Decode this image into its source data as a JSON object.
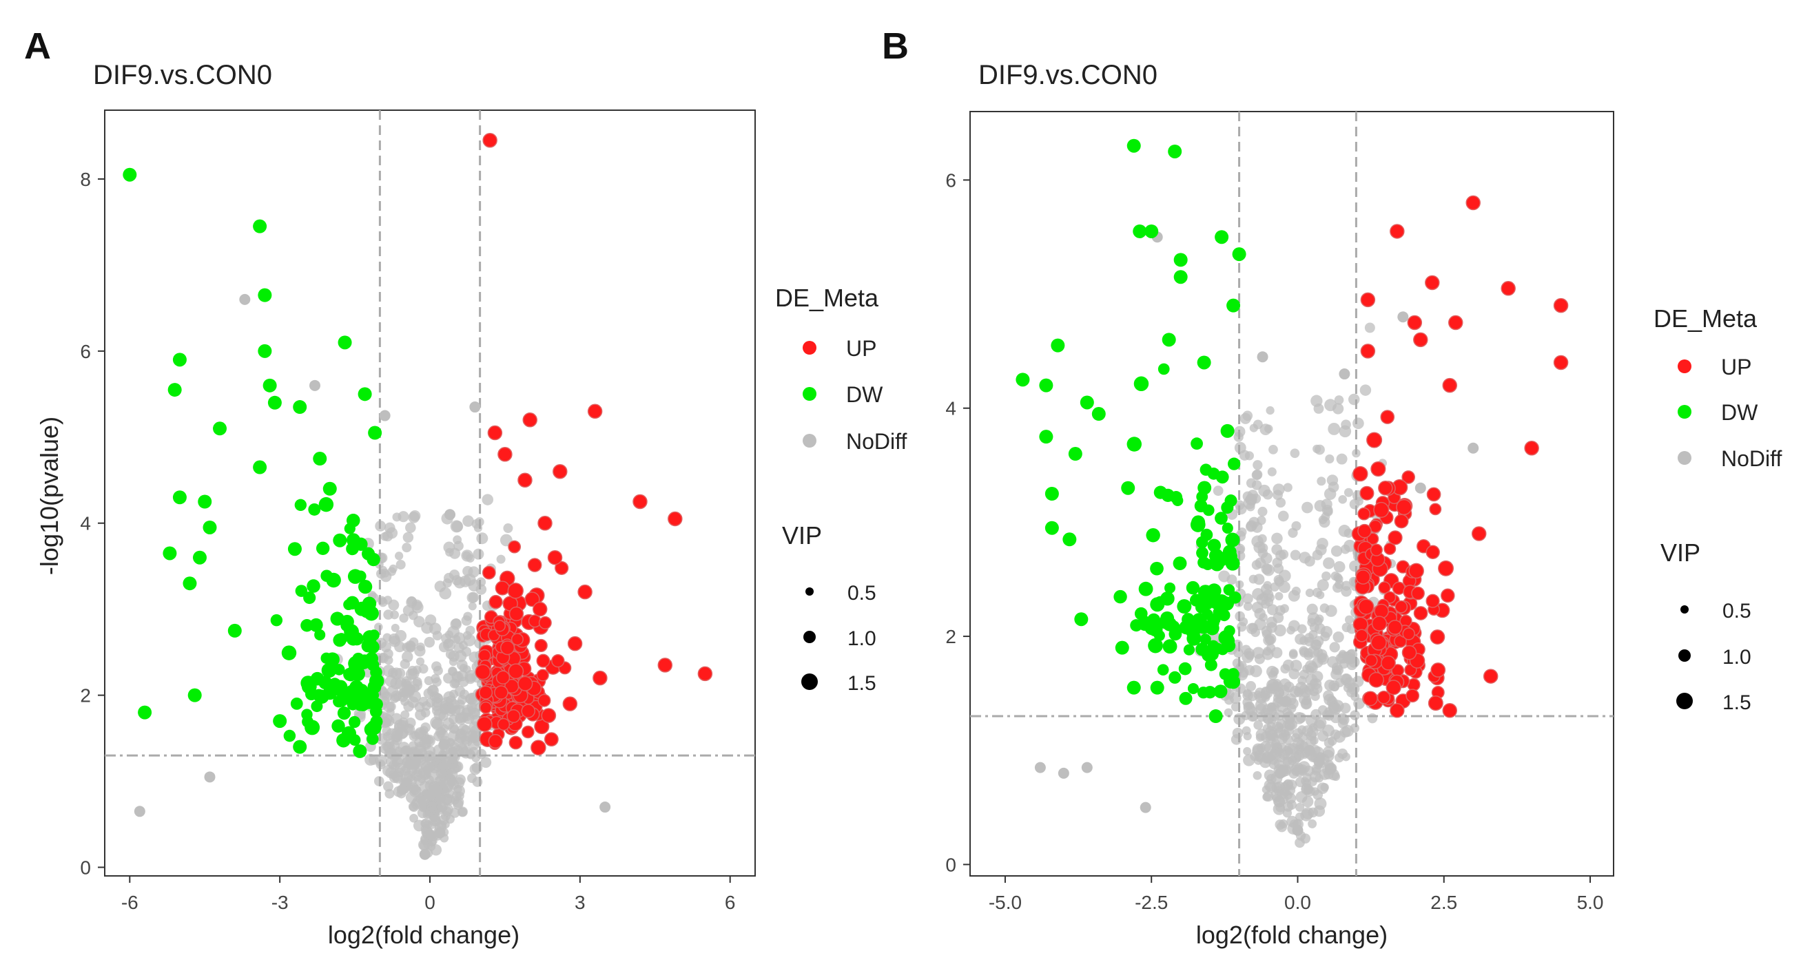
{
  "panels": [
    {
      "letter": "A",
      "title": "DIF9.vs.CON0",
      "xlabel": "log2(fold change)",
      "ylabel": "-log10(pvalue)",
      "xticks": [
        "-6",
        "-3",
        "0",
        "3",
        "6"
      ],
      "yticks": [
        "0",
        "2",
        "4",
        "6",
        "8"
      ],
      "legend": {
        "color_title": "DE_Meta",
        "color_items": [
          {
            "label": "UP",
            "color": "#ff1a1a"
          },
          {
            "label": "DW",
            "color": "#00ee00"
          },
          {
            "label": "NoDiff",
            "color": "#bebebe"
          }
        ],
        "size_title": "VIP",
        "size_items": [
          "0.5",
          "1.0",
          "1.5"
        ]
      }
    },
    {
      "letter": "B",
      "title": "DIF9.vs.CON0",
      "xlabel": "log2(fold change)",
      "ylabel": "",
      "xticks": [
        "-5.0",
        "-2.5",
        "0.0",
        "2.5",
        "5.0"
      ],
      "yticks": [
        "0",
        "2",
        "4",
        "6"
      ],
      "legend": {
        "color_title": "DE_Meta",
        "color_items": [
          {
            "label": "UP",
            "color": "#ff1a1a"
          },
          {
            "label": "DW",
            "color": "#00ee00"
          },
          {
            "label": "NoDiff",
            "color": "#bebebe"
          }
        ],
        "size_title": "VIP",
        "size_items": [
          "0.5",
          "1.0",
          "1.5"
        ]
      }
    }
  ],
  "chart_data": [
    {
      "type": "scatter",
      "title": "DIF9.vs.CON0",
      "xlabel": "log2(fold change)",
      "ylabel": "-log10(pvalue)",
      "xlim": [
        -6.5,
        6.5
      ],
      "ylim": [
        -0.1,
        8.8
      ],
      "xticks": [
        -6,
        -3,
        0,
        3,
        6
      ],
      "yticks": [
        0,
        2,
        4,
        6,
        8
      ],
      "fc_threshold": [
        -1,
        1
      ],
      "p_threshold": 1.3,
      "up_points": [
        [
          1.2,
          8.45
        ],
        [
          3.3,
          5.3
        ],
        [
          4.2,
          4.25
        ],
        [
          4.9,
          4.05
        ],
        [
          4.7,
          2.35
        ],
        [
          5.5,
          2.25
        ],
        [
          2.0,
          5.2
        ],
        [
          1.3,
          5.05
        ],
        [
          2.6,
          4.6
        ],
        [
          3.1,
          3.2
        ],
        [
          3.4,
          2.2
        ],
        [
          2.8,
          1.9
        ],
        [
          1.5,
          4.8
        ],
        [
          1.9,
          4.5
        ],
        [
          2.3,
          4.0
        ],
        [
          2.5,
          3.6
        ],
        [
          2.2,
          3.0
        ],
        [
          2.9,
          2.6
        ]
      ],
      "dw_points": [
        [
          -6.0,
          8.05
        ],
        [
          -3.4,
          7.45
        ],
        [
          -3.3,
          6.65
        ],
        [
          -1.7,
          6.1
        ],
        [
          -3.3,
          6.0
        ],
        [
          -5.0,
          5.9
        ],
        [
          -5.1,
          5.55
        ],
        [
          -3.2,
          5.6
        ],
        [
          -1.3,
          5.5
        ],
        [
          -2.6,
          5.35
        ],
        [
          -1.1,
          5.05
        ],
        [
          -4.2,
          5.1
        ],
        [
          -3.1,
          5.4
        ],
        [
          -3.4,
          4.65
        ],
        [
          -5.0,
          4.3
        ],
        [
          -4.5,
          4.25
        ],
        [
          -4.4,
          3.95
        ],
        [
          -5.2,
          3.65
        ],
        [
          -4.6,
          3.6
        ],
        [
          -4.8,
          3.3
        ],
        [
          -5.7,
          1.8
        ],
        [
          -4.7,
          2.0
        ],
        [
          -3.9,
          2.75
        ],
        [
          -3.0,
          1.7
        ],
        [
          -2.6,
          1.4
        ],
        [
          -1.4,
          1.35
        ],
        [
          -2.2,
          4.75
        ],
        [
          -2.0,
          4.4
        ],
        [
          -1.8,
          3.8
        ],
        [
          -2.7,
          3.7
        ]
      ],
      "nodiff_points": [
        [
          -3.7,
          6.6
        ],
        [
          -2.3,
          5.6
        ],
        [
          -4.4,
          1.05
        ],
        [
          -5.8,
          0.65
        ],
        [
          3.5,
          0.7
        ],
        [
          0.9,
          5.35
        ],
        [
          -0.9,
          5.25
        ],
        [
          0.4,
          4.1
        ],
        [
          -0.3,
          1.2
        ],
        [
          0.2,
          0.4
        ],
        [
          -0.1,
          0.15
        ],
        [
          0.1,
          0.9
        ]
      ]
    },
    {
      "type": "scatter",
      "title": "DIF9.vs.CON0",
      "xlabel": "log2(fold change)",
      "ylabel": "",
      "xlim": [
        -5.6,
        5.4
      ],
      "ylim": [
        -0.1,
        6.6
      ],
      "xticks": [
        -5.0,
        -2.5,
        0.0,
        2.5,
        5.0
      ],
      "yticks": [
        0,
        2,
        4,
        6
      ],
      "fc_threshold": [
        -1,
        1
      ],
      "p_threshold": 1.3,
      "up_points": [
        [
          3.0,
          5.8
        ],
        [
          1.7,
          5.55
        ],
        [
          3.6,
          5.05
        ],
        [
          4.5,
          4.9
        ],
        [
          4.5,
          4.4
        ],
        [
          2.3,
          5.1
        ],
        [
          1.2,
          4.95
        ],
        [
          2.0,
          4.75
        ],
        [
          2.7,
          4.75
        ],
        [
          2.1,
          4.6
        ],
        [
          1.2,
          4.5
        ],
        [
          4.0,
          3.65
        ],
        [
          3.3,
          1.65
        ],
        [
          2.6,
          1.35
        ],
        [
          1.7,
          1.35
        ],
        [
          2.6,
          4.2
        ],
        [
          3.1,
          2.9
        ],
        [
          1.5,
          3.3
        ]
      ],
      "dw_points": [
        [
          -2.8,
          6.3
        ],
        [
          -2.1,
          6.25
        ],
        [
          -2.5,
          5.55
        ],
        [
          -2.7,
          5.55
        ],
        [
          -1.3,
          5.5
        ],
        [
          -1.0,
          5.35
        ],
        [
          -2.0,
          5.3
        ],
        [
          -2.0,
          5.15
        ],
        [
          -1.1,
          4.9
        ],
        [
          -4.1,
          4.55
        ],
        [
          -4.7,
          4.25
        ],
        [
          -4.3,
          4.2
        ],
        [
          -3.6,
          4.05
        ],
        [
          -3.4,
          3.95
        ],
        [
          -4.3,
          3.75
        ],
        [
          -3.8,
          3.6
        ],
        [
          -4.2,
          3.25
        ],
        [
          -3.7,
          2.15
        ],
        [
          -3.0,
          1.9
        ],
        [
          -2.8,
          1.55
        ],
        [
          -2.4,
          1.55
        ],
        [
          -1.4,
          1.3
        ],
        [
          -1.1,
          1.6
        ],
        [
          -4.2,
          2.95
        ],
        [
          -3.9,
          2.85
        ],
        [
          -2.2,
          4.6
        ],
        [
          -1.6,
          4.4
        ],
        [
          -2.9,
          3.3
        ],
        [
          -1.2,
          3.8
        ],
        [
          -1.7,
          3.0
        ]
      ],
      "nodiff_points": [
        [
          -2.4,
          5.5
        ],
        [
          -4.4,
          0.85
        ],
        [
          -4.0,
          0.8
        ],
        [
          -3.6,
          0.85
        ],
        [
          -2.6,
          0.5
        ],
        [
          1.8,
          4.8
        ],
        [
          3.0,
          3.65
        ],
        [
          2.1,
          3.3
        ],
        [
          0.8,
          4.3
        ],
        [
          -0.6,
          4.45
        ],
        [
          0.0,
          0.3
        ],
        [
          0.2,
          1.0
        ],
        [
          -0.3,
          0.8
        ]
      ]
    }
  ]
}
